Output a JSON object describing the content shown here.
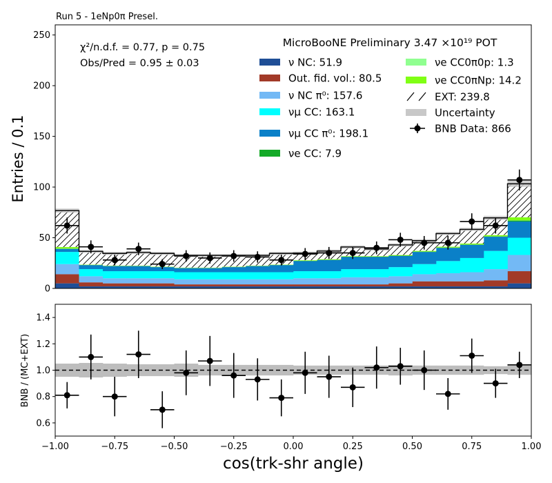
{
  "colors": {
    "nu_nc": "#1f4e96",
    "out_fid": "#a23a28",
    "nu_nc_pi0": "#73b9f5",
    "numu_cc": "#00ffff",
    "numu_cc_pi0": "#0a80c8",
    "nue_cc": "#14aa28",
    "nue_cc0pi0p": "#90ff90",
    "nue_cc0piNp": "#80ff14",
    "ext_hatch": "#000000",
    "uncertainty": "#c8c8c8",
    "data": "#000000"
  },
  "chart_data": [
    {
      "type": "bar",
      "title": "Run 5 - 1eNp0$\\pi$ Presel.",
      "title_text": "Run 5 - 1eNp0π Presel.",
      "xlabel": "",
      "ylabel": "Entries / 0.1",
      "xlim": [
        -1.0,
        1.0
      ],
      "ylim": [
        0,
        260
      ],
      "y_ticks": [
        0,
        50,
        100,
        150,
        200,
        250
      ],
      "y_tick_labels": [
        "0",
        "50",
        "100",
        "150",
        "200",
        "250"
      ],
      "bin_edges": [
        -1.0,
        -0.9,
        -0.8,
        -0.7,
        -0.6,
        -0.5,
        -0.4,
        -0.3,
        -0.2,
        -0.1,
        0.0,
        0.1,
        0.2,
        0.3,
        0.4,
        0.5,
        0.6,
        0.7,
        0.8,
        0.9,
        1.0
      ],
      "stack_order": [
        "nu_nc",
        "out_fid",
        "nu_nc_pi0",
        "numu_cc",
        "numu_cc_pi0",
        "nue_cc",
        "nue_cc0pi0p",
        "nue_cc0piNp",
        "ext"
      ],
      "series": [
        {
          "key": "nu_nc",
          "values": [
            5,
            2,
            2,
            2,
            2,
            2,
            2,
            2,
            2,
            2,
            2,
            2,
            2,
            2,
            2,
            2,
            2,
            2,
            2,
            5
          ]
        },
        {
          "key": "out_fid",
          "values": [
            9,
            4,
            3,
            3,
            3,
            2,
            2,
            2,
            2,
            2,
            2,
            2,
            2,
            2,
            3,
            5,
            5,
            5,
            6,
            12
          ]
        },
        {
          "key": "nu_nc_pi0",
          "values": [
            10,
            6,
            5,
            5,
            5,
            5,
            5,
            5,
            5,
            5,
            6,
            6,
            7,
            7,
            7,
            7,
            8,
            9,
            11,
            16
          ]
        },
        {
          "key": "numu_cc",
          "values": [
            12,
            7,
            7,
            7,
            7,
            7,
            7,
            7,
            7,
            7,
            7,
            7,
            8,
            8,
            9,
            10,
            12,
            14,
            18,
            17
          ]
        },
        {
          "key": "numu_cc_pi0",
          "values": [
            3,
            4,
            5,
            5,
            4,
            4,
            4,
            5,
            6,
            7,
            10,
            11,
            12,
            12,
            11,
            12,
            13,
            13,
            14,
            16
          ]
        },
        {
          "key": "nue_cc",
          "values": [
            0.2,
            0.2,
            0.2,
            0.2,
            0.2,
            0.2,
            0.2,
            0.2,
            0.2,
            0.2,
            0.3,
            0.3,
            0.3,
            0.3,
            0.3,
            0.3,
            0.3,
            0.3,
            0.3,
            1.0
          ]
        },
        {
          "key": "nue_cc0pi0p",
          "values": [
            0.1,
            0.05,
            0.05,
            0.05,
            0.05,
            0.05,
            0.05,
            0.05,
            0.05,
            0.05,
            0.05,
            0.05,
            0.05,
            0.05,
            0.05,
            0.05,
            0.05,
            0.05,
            0.1,
            0.2
          ]
        },
        {
          "key": "nue_cc0piNp",
          "values": [
            1.5,
            0.3,
            0.3,
            0.3,
            0.3,
            0.3,
            0.3,
            0.3,
            0.3,
            0.3,
            0.5,
            0.5,
            0.5,
            0.5,
            0.6,
            0.7,
            0.8,
            0.9,
            1.2,
            3.0
          ]
        },
        {
          "key": "ext",
          "values": [
            36,
            13,
            12,
            13,
            13,
            12,
            12,
            11,
            10,
            11,
            7,
            8,
            9,
            7,
            10,
            10,
            13,
            14,
            17,
            33
          ]
        }
      ],
      "uncertainty_halfwidth": [
        2,
        1.5,
        1.5,
        1.5,
        1.5,
        1.5,
        1.5,
        1.5,
        1.5,
        1.5,
        1.5,
        1.5,
        1.5,
        1.5,
        1.5,
        1.5,
        1.5,
        1.5,
        2,
        3
      ],
      "data_points": {
        "x": [
          -0.95,
          -0.85,
          -0.75,
          -0.65,
          -0.55,
          -0.45,
          -0.35,
          -0.25,
          -0.15,
          -0.05,
          0.05,
          0.15,
          0.25,
          0.35,
          0.45,
          0.55,
          0.65,
          0.75,
          0.85,
          0.95
        ],
        "y": [
          62,
          41,
          28,
          39,
          24,
          32,
          30,
          32,
          31,
          28,
          34,
          35,
          35,
          40,
          48,
          45,
          45,
          66,
          62,
          107
        ],
        "yerr": [
          7.9,
          6.4,
          5.3,
          6.2,
          4.9,
          5.7,
          5.5,
          5.7,
          5.6,
          5.3,
          5.8,
          5.9,
          5.9,
          6.3,
          6.9,
          6.7,
          6.7,
          8.1,
          7.9,
          10.3
        ]
      },
      "annotations": {
        "chi2": "χ²/n.d.f. = 0.77, p = 0.75",
        "obs_pred": "Obs/Pred = 0.95 ± 0.03",
        "legend_title": "MicroBooNE Preliminary 3.47 ×10¹⁹ POT"
      },
      "legend_placement": "top-right",
      "legend": [
        {
          "key": "nu_nc",
          "label": "ν NC: 51.9"
        },
        {
          "key": "out_fid",
          "label": "Out. fid. vol.: 80.5"
        },
        {
          "key": "nu_nc_pi0",
          "label": "ν NC π⁰: 157.6"
        },
        {
          "key": "numu_cc",
          "label": "νμ CC: 163.1"
        },
        {
          "key": "numu_cc_pi0",
          "label": "νμ CC π⁰: 198.1"
        },
        {
          "key": "nue_cc",
          "label": "νe CC: 7.9"
        },
        {
          "key": "nue_cc0pi0p",
          "label": "νe CC0π0p: 1.3"
        },
        {
          "key": "nue_cc0piNp",
          "label": "νe CC0πNp: 14.2"
        },
        {
          "key": "ext",
          "label": "EXT: 239.8"
        },
        {
          "key": "uncertainty",
          "label": "Uncertainty"
        },
        {
          "key": "data",
          "label": "BNB Data: 866"
        }
      ],
      "grid": false
    },
    {
      "type": "scatter",
      "title": "",
      "xlabel": "cos(trk-shr angle)",
      "ylabel": "BNB / (MC+EXT)",
      "xlim": [
        -1.0,
        1.0
      ],
      "ylim": [
        0.5,
        1.5
      ],
      "x_ticks": [
        -1.0,
        -0.75,
        -0.5,
        -0.25,
        0.0,
        0.25,
        0.5,
        0.75,
        1.0
      ],
      "x_tick_labels": [
        "−1.00",
        "−0.75",
        "−0.50",
        "−0.25",
        "0.00",
        "0.25",
        "0.50",
        "0.75",
        "1.00"
      ],
      "y_ticks": [
        0.6,
        0.8,
        1.0,
        1.2,
        1.4
      ],
      "y_tick_labels": [
        "0.6",
        "0.8",
        "1.0",
        "1.2",
        "1.4"
      ],
      "reference_line": 1.0,
      "ratio_points": {
        "x": [
          -0.95,
          -0.85,
          -0.75,
          -0.65,
          -0.55,
          -0.45,
          -0.35,
          -0.25,
          -0.15,
          -0.05,
          0.05,
          0.15,
          0.25,
          0.35,
          0.45,
          0.55,
          0.65,
          0.75,
          0.85,
          0.95
        ],
        "y": [
          0.81,
          1.1,
          0.8,
          1.12,
          0.7,
          0.98,
          1.07,
          0.96,
          0.93,
          0.79,
          0.98,
          0.95,
          0.87,
          1.02,
          1.03,
          1.0,
          0.82,
          1.11,
          0.9,
          1.04
        ],
        "yerr": [
          0.1,
          0.17,
          0.15,
          0.18,
          0.14,
          0.17,
          0.19,
          0.17,
          0.16,
          0.14,
          0.16,
          0.16,
          0.15,
          0.16,
          0.14,
          0.15,
          0.12,
          0.13,
          0.11,
          0.1
        ]
      },
      "ratio_band_halfwidth": [
        0.05,
        0.055,
        0.05,
        0.045,
        0.045,
        0.05,
        0.04,
        0.04,
        0.04,
        0.04,
        0.035,
        0.035,
        0.035,
        0.035,
        0.04,
        0.035,
        0.035,
        0.035,
        0.03,
        0.035
      ],
      "grid": false
    }
  ]
}
